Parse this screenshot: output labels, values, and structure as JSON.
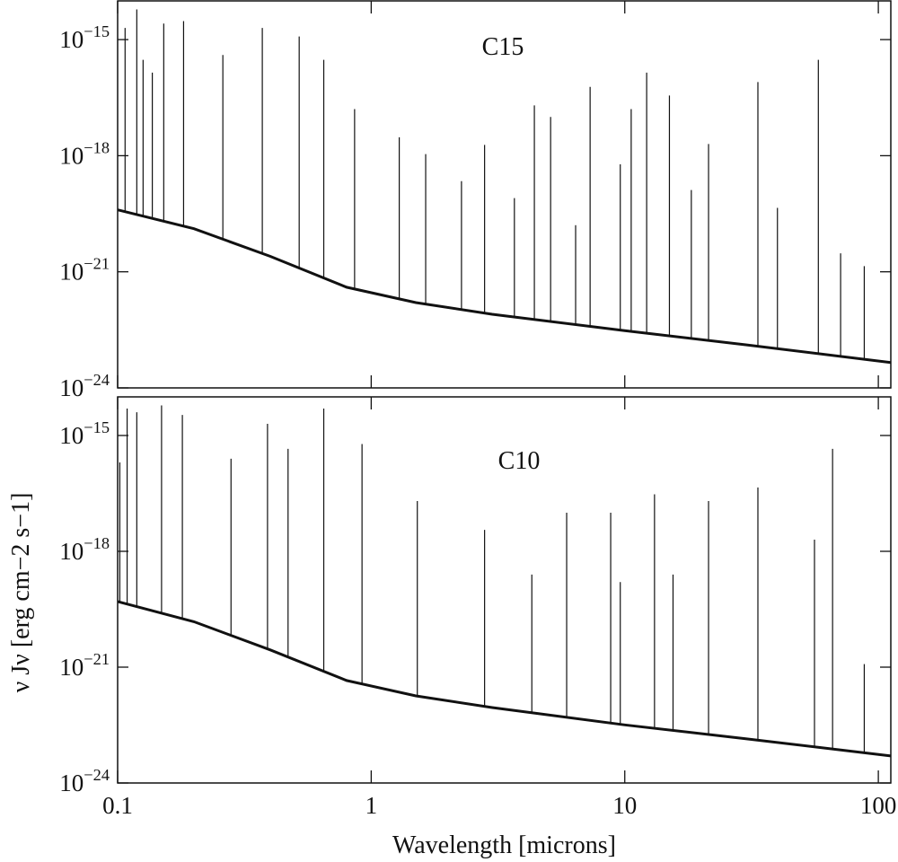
{
  "chart_data": [
    {
      "type": "spectrum",
      "panel_label": "C15",
      "xlog": true,
      "ylog": true,
      "xlim": [
        0.1,
        112
      ],
      "ylim": [
        1e-24,
        1e-14
      ],
      "yticks": [
        {
          "value": 1e-15,
          "label": "10−15"
        },
        {
          "value": 1e-18,
          "label": "10−18"
        },
        {
          "value": 1e-21,
          "label": "10−21"
        },
        {
          "value": 1e-24,
          "label": "10−24"
        }
      ],
      "color": "#111111",
      "continuum": {
        "x": [
          0.1,
          0.2,
          0.4,
          0.8,
          1.5,
          3,
          10,
          30,
          112
        ],
        "values": [
          4e-20,
          1.3e-20,
          2.5e-21,
          4e-22,
          1.6e-22,
          8e-23,
          3e-23,
          1.3e-23,
          4.5e-24
        ]
      },
      "lines": {
        "x": [
          0.107,
          0.119,
          0.126,
          0.137,
          0.152,
          0.182,
          0.26,
          0.372,
          0.52,
          0.65,
          0.86,
          1.29,
          1.64,
          2.27,
          2.8,
          3.67,
          4.4,
          5.1,
          6.4,
          7.3,
          9.6,
          10.6,
          12.2,
          15.0,
          18.3,
          21.4,
          33.5,
          40,
          58,
          71,
          88
        ],
        "values": [
          2e-15,
          6e-15,
          3e-16,
          1.4e-16,
          2.6e-15,
          3e-15,
          4e-16,
          2e-15,
          1.2e-15,
          3e-16,
          1.6e-17,
          3e-18,
          1.1e-18,
          2.2e-19,
          1.9e-18,
          8e-20,
          2e-17,
          1e-17,
          1.6e-20,
          6e-17,
          6e-19,
          1.6e-17,
          1.4e-16,
          3.6e-17,
          1.3e-19,
          2e-18,
          8e-17,
          4.5e-20,
          3e-16,
          3e-21,
          1.4e-21
        ]
      }
    },
    {
      "type": "spectrum",
      "panel_label": "C10",
      "xlog": true,
      "ylog": true,
      "xlim": [
        0.1,
        112
      ],
      "ylim": [
        1e-24,
        1e-14
      ],
      "xticks": [
        0.1,
        1,
        10,
        100
      ],
      "yticks": [
        {
          "value": 1e-15,
          "label": "10−15"
        },
        {
          "value": 1e-18,
          "label": "10−18"
        },
        {
          "value": 1e-21,
          "label": "10−21"
        },
        {
          "value": 1e-24,
          "label": "10−24"
        }
      ],
      "xlabel": "Wavelength [microns]",
      "ylabel": "ν Jν [erg cm−2 s−1]",
      "color": "#111111",
      "continuum": {
        "x": [
          0.1,
          0.2,
          0.4,
          0.8,
          1.5,
          3,
          10,
          30,
          112
        ],
        "values": [
          5e-20,
          1.5e-20,
          2.8e-21,
          4.5e-22,
          1.8e-22,
          9e-23,
          3.2e-23,
          1.4e-23,
          5e-24
        ]
      },
      "lines": {
        "x": [
          0.102,
          0.109,
          0.119,
          0.149,
          0.18,
          0.28,
          0.39,
          0.47,
          0.65,
          0.92,
          1.52,
          2.8,
          4.3,
          5.9,
          8.8,
          9.6,
          13.1,
          15.5,
          21.4,
          33.5,
          56,
          66,
          88
        ],
        "values": [
          2e-16,
          5e-15,
          4e-15,
          6e-15,
          3.4e-15,
          2.5e-16,
          2e-15,
          4.5e-16,
          5e-15,
          6e-16,
          2e-17,
          3.6e-18,
          2.5e-19,
          1e-17,
          1e-17,
          1.6e-19,
          3e-17,
          2.5e-19,
          2e-17,
          4.5e-17,
          2e-18,
          4.5e-16,
          1.2e-21
        ]
      }
    }
  ]
}
